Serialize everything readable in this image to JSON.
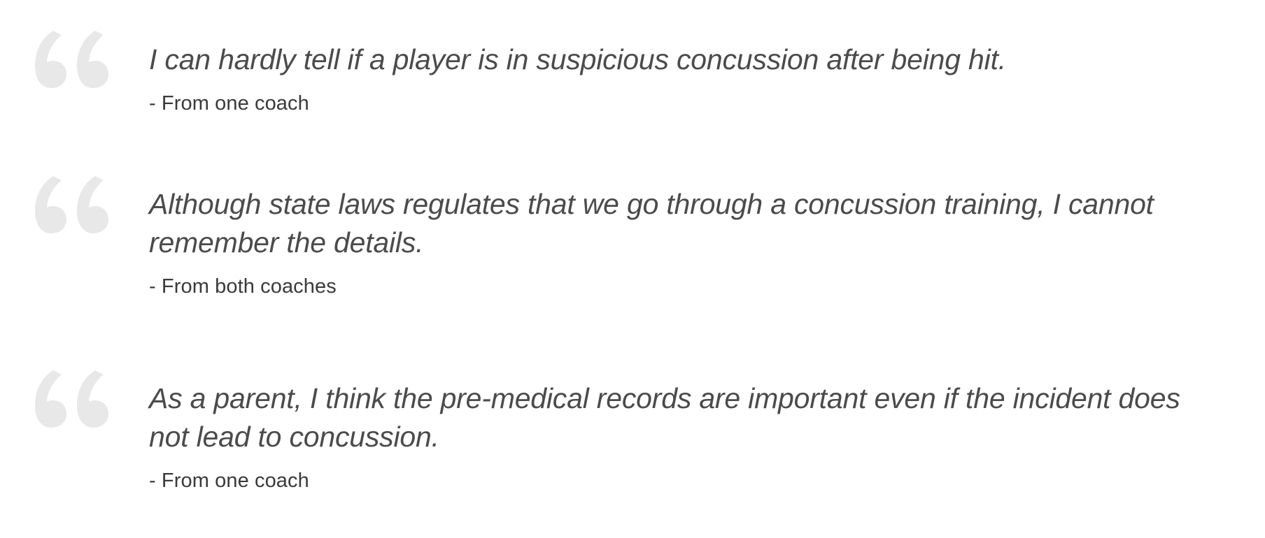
{
  "quotes": [
    {
      "icon": "quotation-mark-icon",
      "text": "I can hardly tell if a player is in suspicious concussion after being hit.",
      "attribution": "- From one coach"
    },
    {
      "icon": "quotation-mark-icon",
      "text": "Although state laws regulates that we go through a concussion training, I cannot remember the details.",
      "attribution": "- From both coaches"
    },
    {
      "icon": "quotation-mark-icon",
      "text": "As a parent, I think the pre-medical records are important even if the incident does not lead to concussion.",
      "attribution": "- From one coach"
    }
  ],
  "colors": {
    "quote_mark": "#e8e8e8",
    "quote_text": "#4b4b4b",
    "attribution_text": "#3a3a3a",
    "background": "#ffffff"
  }
}
